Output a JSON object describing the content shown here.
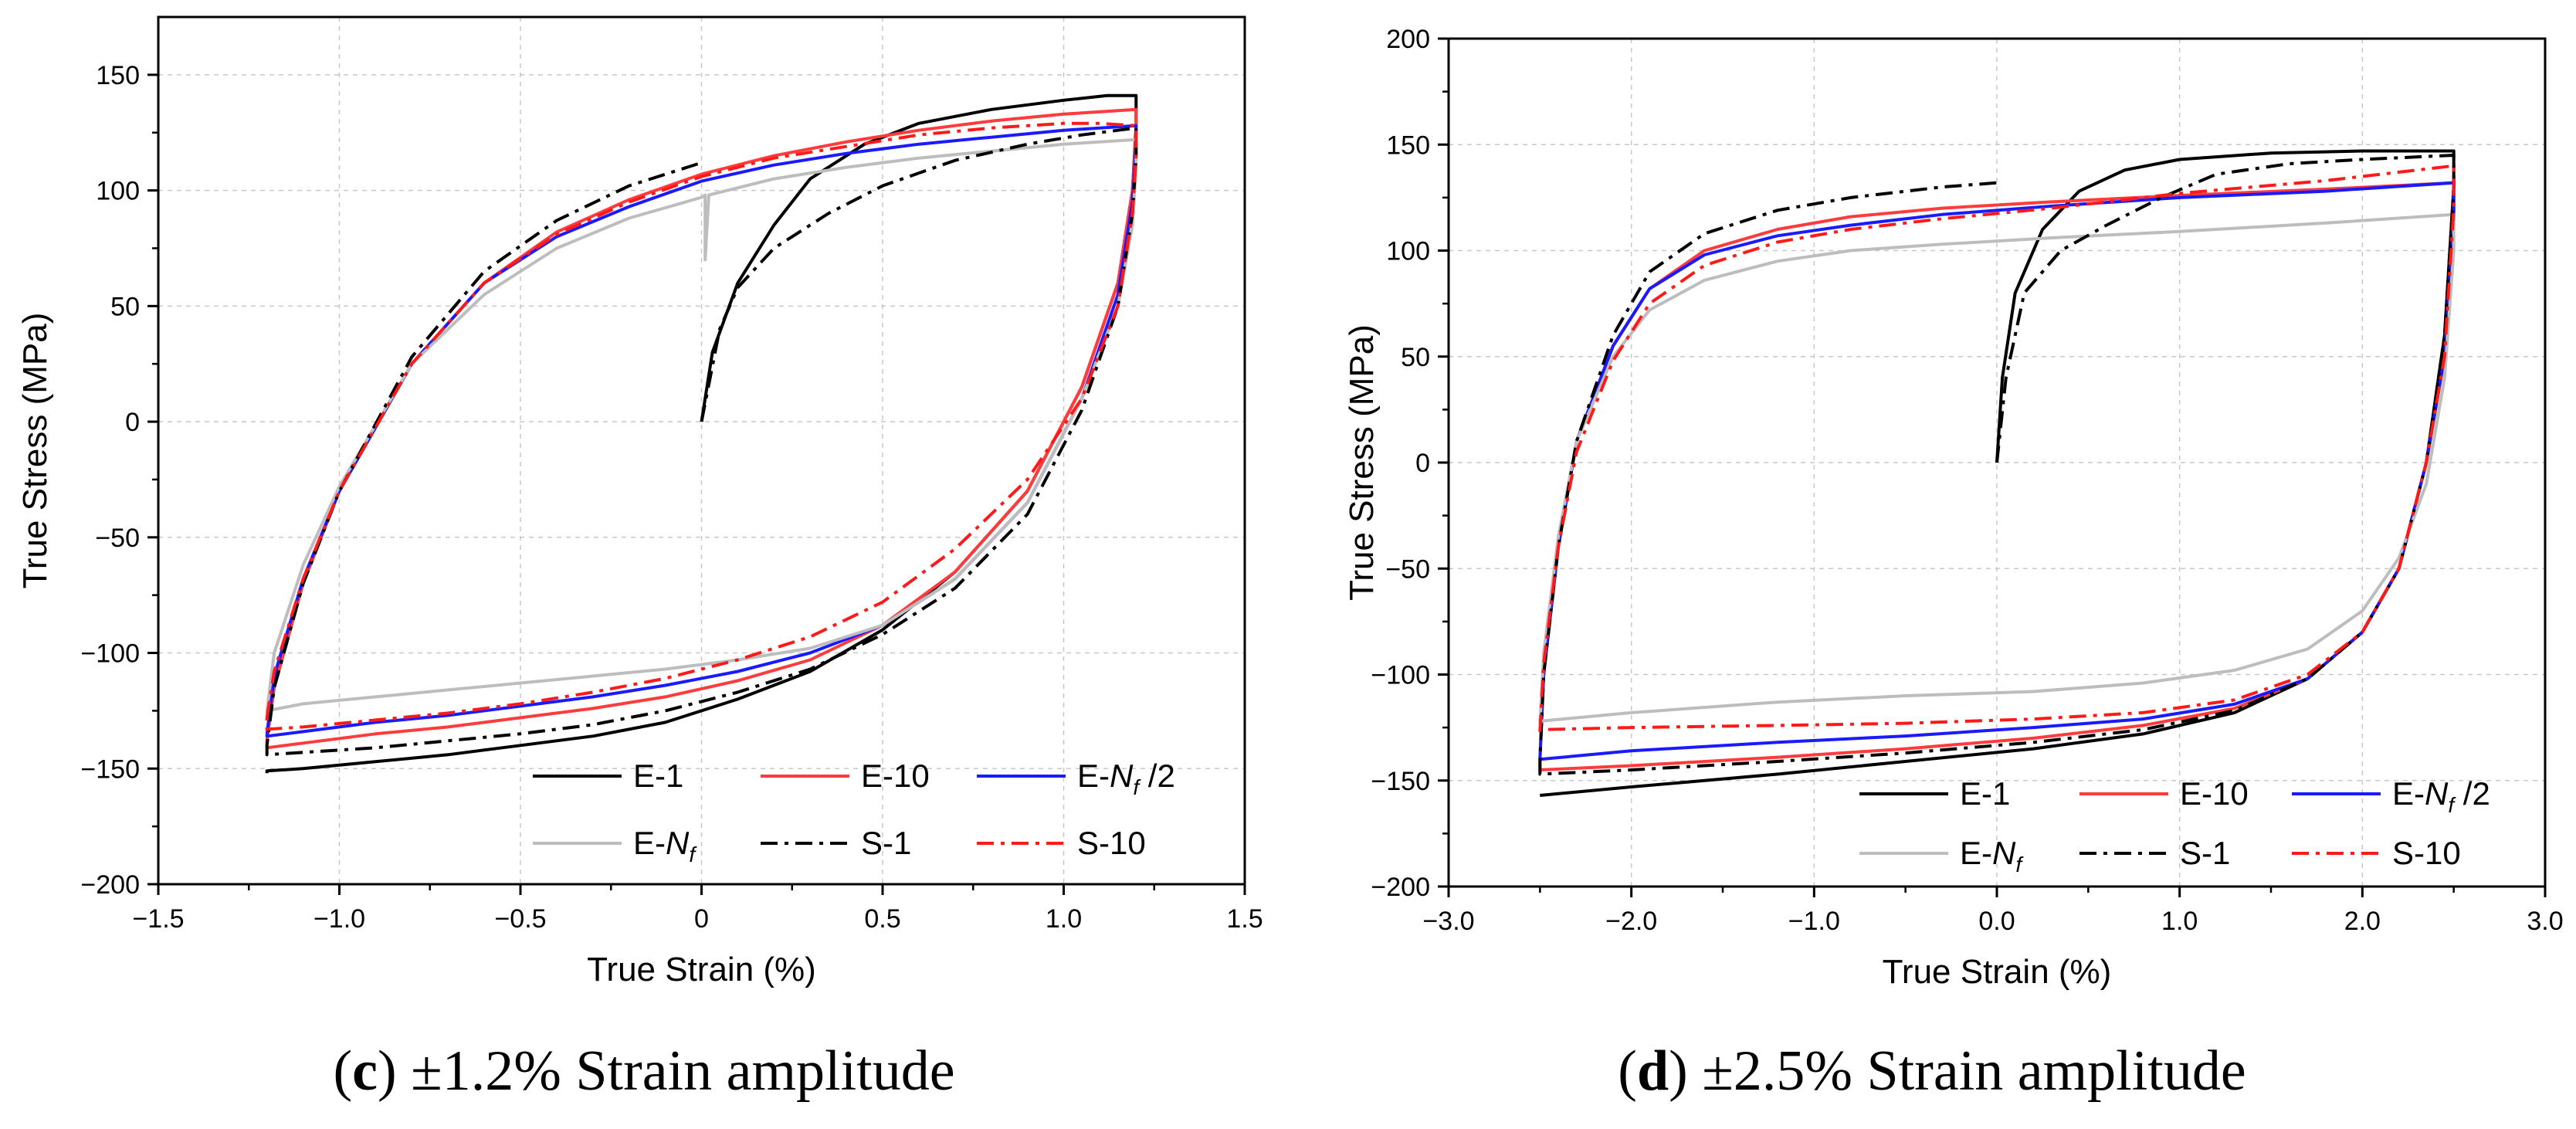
{
  "chart_data": [
    {
      "panel_id": "c",
      "type": "line",
      "xlabel": "True Strain (%)",
      "ylabel": "True Stress (MPa)",
      "xlim": [
        -1.5,
        1.5
      ],
      "ylim": [
        -200,
        175
      ],
      "xticks": [
        -1.5,
        -1.0,
        -0.5,
        0,
        0.5,
        1.0,
        1.5
      ],
      "xtick_labels": [
        "−1.5",
        "−1.0",
        "−0.5",
        "0",
        "0.5",
        "1.0",
        "1.5"
      ],
      "yticks": [
        -200,
        -150,
        -100,
        -50,
        0,
        50,
        100,
        150
      ],
      "ytick_labels": [
        "−200",
        "−150",
        "−100",
        "−50",
        "0",
        "50",
        "100",
        "150"
      ],
      "grid": true,
      "legend_position": "bottom-right",
      "caption": {
        "letter": "c",
        "paren_open": "(",
        "paren_close": ")",
        "text": " ±1.2% Strain amplitude"
      },
      "series": [
        {
          "name": "E-1",
          "label_main": "E-1",
          "label_sub": "",
          "label_suffix": "",
          "color": "#000000",
          "dash": "solid",
          "x": [
            0,
            0.03,
            0.1,
            0.2,
            0.3,
            0.45,
            0.6,
            0.8,
            1.0,
            1.12,
            1.2,
            1.2,
            1.19,
            1.15,
            1.05,
            0.9,
            0.7,
            0.5,
            0.3,
            0.1,
            -0.1,
            -0.3,
            -0.5,
            -0.7,
            -0.9,
            -1.1,
            -1.2,
            -1.2
          ],
          "y": [
            0,
            30,
            60,
            85,
            105,
            120,
            129,
            135,
            139,
            141,
            141,
            128,
            100,
            60,
            15,
            -30,
            -65,
            -90,
            -108,
            -120,
            -130,
            -136,
            -140,
            -144,
            -147,
            -150,
            -151,
            -152
          ]
        },
        {
          "name": "E-10",
          "label_main": "E-10",
          "label_sub": "",
          "label_suffix": "",
          "color": "#ff3b3b",
          "dash": "solid",
          "x": [
            -1.2,
            -1.18,
            -1.1,
            -1.0,
            -0.8,
            -0.6,
            -0.4,
            -0.2,
            0,
            0.2,
            0.4,
            0.6,
            0.8,
            1.0,
            1.1,
            1.2,
            1.2,
            1.19,
            1.15,
            1.05,
            0.9,
            0.7,
            0.5,
            0.3,
            0.1,
            -0.1,
            -0.3,
            -0.5,
            -0.7,
            -0.9,
            -1.1,
            -1.2,
            -1.2
          ],
          "y": [
            -138,
            -115,
            -70,
            -30,
            25,
            60,
            82,
            96,
            107,
            115,
            121,
            126,
            130,
            133,
            134,
            135,
            125,
            100,
            60,
            15,
            -30,
            -65,
            -88,
            -103,
            -112,
            -119,
            -124,
            -128,
            -132,
            -135,
            -139,
            -141,
            -138
          ]
        },
        {
          "name": "E-Nf/2",
          "label_main": "E-",
          "label_sub": "N",
          "label_subsub": "f",
          "label_suffix": " /2",
          "color": "#1a1aff",
          "dash": "solid",
          "x": [
            -1.2,
            -1.18,
            -1.1,
            -1.0,
            -0.8,
            -0.6,
            -0.4,
            -0.2,
            0,
            0.2,
            0.4,
            0.6,
            0.8,
            1.0,
            1.1,
            1.2,
            1.2,
            1.19,
            1.15,
            1.05,
            0.9,
            0.7,
            0.5,
            0.3,
            0.1,
            -0.1,
            -0.3,
            -0.5,
            -0.7,
            -0.9,
            -1.1,
            -1.2,
            -1.2
          ],
          "y": [
            -135,
            -110,
            -68,
            -30,
            25,
            60,
            80,
            93,
            104,
            111,
            116,
            120,
            123,
            126,
            127,
            128,
            120,
            95,
            55,
            10,
            -35,
            -68,
            -88,
            -100,
            -108,
            -114,
            -119,
            -123,
            -127,
            -130,
            -134,
            -136,
            -135
          ]
        },
        {
          "name": "E-Nf",
          "label_main": "E-",
          "label_sub": "N",
          "label_subsub": "f",
          "label_suffix": "",
          "color": "#bdbdbd",
          "dash": "solid",
          "x": [
            -1.2,
            -1.18,
            -1.1,
            -1.0,
            -0.8,
            -0.6,
            -0.4,
            -0.2,
            0,
            0.01,
            0.01,
            0.02,
            0.2,
            0.4,
            0.6,
            0.8,
            1.0,
            1.1,
            1.2,
            1.2,
            1.19,
            1.15,
            1.05,
            0.9,
            0.7,
            0.5,
            0.3,
            0.1,
            -0.1,
            -0.3,
            -0.5,
            -0.7,
            -0.9,
            -1.1,
            -1.2,
            -1.2
          ],
          "y": [
            -125,
            -100,
            -62,
            -28,
            25,
            55,
            75,
            88,
            97,
            98,
            70,
            98,
            105,
            110,
            114,
            117,
            120,
            121,
            122,
            110,
            85,
            50,
            10,
            -35,
            -68,
            -88,
            -98,
            -103,
            -107,
            -110,
            -113,
            -116,
            -119,
            -122,
            -125,
            -126
          ]
        },
        {
          "name": "S-1",
          "label_main": "S-1",
          "label_sub": "",
          "label_suffix": "",
          "color": "#000000",
          "dash": "dashdot",
          "x": [
            0,
            0.05,
            0.1,
            0.2,
            0.35,
            0.5,
            0.7,
            0.9,
            1.05,
            1.15,
            1.2,
            1.2,
            1.19,
            1.15,
            1.05,
            0.9,
            0.7,
            0.5,
            0.3,
            0.1,
            -0.1,
            -0.3,
            -0.5,
            -0.7,
            -0.9,
            -1.1,
            -1.2,
            -1.2,
            -1.18,
            -1.1,
            -1.0,
            -0.8,
            -0.6,
            -0.4,
            -0.2,
            0
          ],
          "y": [
            0,
            40,
            58,
            75,
            90,
            102,
            113,
            120,
            124,
            126,
            127,
            115,
            90,
            50,
            5,
            -40,
            -72,
            -92,
            -107,
            -117,
            -125,
            -131,
            -135,
            -138,
            -141,
            -143,
            -144,
            -140,
            -115,
            -70,
            -30,
            28,
            65,
            87,
            102,
            112
          ]
        },
        {
          "name": "S-10",
          "label_main": "S-10",
          "label_sub": "",
          "label_suffix": "",
          "color": "#ff1a1a",
          "dash": "dashdot",
          "x": [
            -1.2,
            -1.18,
            -1.1,
            -1.0,
            -0.8,
            -0.6,
            -0.4,
            -0.2,
            0,
            0.2,
            0.4,
            0.6,
            0.8,
            1.0,
            1.1,
            1.2,
            1.2,
            1.19,
            1.15,
            1.05,
            0.9,
            0.7,
            0.5,
            0.3,
            0.1,
            -0.1,
            -0.3,
            -0.5,
            -0.7,
            -0.9,
            -1.1,
            -1.2,
            -1.2
          ],
          "y": [
            -128,
            -108,
            -68,
            -30,
            25,
            60,
            81,
            95,
            106,
            114,
            119,
            124,
            127,
            129,
            129,
            128,
            115,
            90,
            50,
            10,
            -25,
            -55,
            -78,
            -93,
            -103,
            -111,
            -117,
            -122,
            -126,
            -129,
            -132,
            -133,
            -128
          ]
        }
      ]
    },
    {
      "panel_id": "d",
      "type": "line",
      "xlabel": "True Strain (%)",
      "ylabel": "True Stress (MPa)",
      "xlim": [
        -3.0,
        3.0
      ],
      "ylim": [
        -200,
        200
      ],
      "xticks": [
        -3.0,
        -2.0,
        -1.0,
        0,
        1.0,
        2.0,
        3.0
      ],
      "xtick_labels": [
        "−3.0",
        "−2.0",
        "−1.0",
        "0.0",
        "1.0",
        "2.0",
        "3.0"
      ],
      "yticks": [
        -200,
        -150,
        -100,
        -50,
        0,
        50,
        100,
        150,
        200
      ],
      "ytick_labels": [
        "−200",
        "−150",
        "−100",
        "−50",
        "0",
        "50",
        "100",
        "150",
        "200"
      ],
      "grid": true,
      "legend_position": "bottom-right",
      "caption": {
        "letter": "d",
        "paren_open": "(",
        "paren_close": ")",
        "text": " ±2.5% Strain amplitude"
      },
      "series": [
        {
          "name": "E-1",
          "label_main": "E-1",
          "label_sub": "",
          "label_suffix": "",
          "color": "#000000",
          "dash": "solid",
          "x": [
            0,
            0.03,
            0.1,
            0.25,
            0.45,
            0.7,
            1.0,
            1.5,
            2.0,
            2.5,
            2.5,
            2.45,
            2.35,
            2.2,
            2.0,
            1.7,
            1.3,
            0.8,
            0.2,
            -0.5,
            -1.2,
            -2.0,
            -2.5,
            -2.5
          ],
          "y": [
            0,
            40,
            80,
            110,
            128,
            138,
            143,
            146,
            147,
            147,
            130,
            60,
            0,
            -50,
            -80,
            -102,
            -118,
            -128,
            -135,
            -141,
            -147,
            -153,
            -157,
            -157
          ]
        },
        {
          "name": "E-10",
          "label_main": "E-10",
          "label_sub": "",
          "label_suffix": "",
          "color": "#ff3b3b",
          "dash": "solid",
          "x": [
            -2.5,
            -2.48,
            -2.4,
            -2.3,
            -2.1,
            -1.9,
            -1.6,
            -1.2,
            -0.8,
            -0.3,
            0.3,
            1.0,
            1.8,
            2.5,
            2.5,
            2.45,
            2.35,
            2.2,
            2.0,
            1.7,
            1.3,
            0.8,
            0.2,
            -0.5,
            -1.2,
            -2.0,
            -2.5,
            -2.5
          ],
          "y": [
            -140,
            -100,
            -40,
            10,
            55,
            82,
            100,
            110,
            116,
            120,
            123,
            126,
            129,
            132,
            115,
            50,
            0,
            -50,
            -80,
            -102,
            -116,
            -124,
            -130,
            -135,
            -139,
            -143,
            -145,
            -140
          ]
        },
        {
          "name": "E-Nf/2",
          "label_main": "E-",
          "label_sub": "N",
          "label_subsub": "f",
          "label_suffix": " /2",
          "color": "#1a1aff",
          "dash": "solid",
          "x": [
            -2.5,
            -2.48,
            -2.4,
            -2.3,
            -2.1,
            -1.9,
            -1.6,
            -1.2,
            -0.8,
            -0.3,
            0.3,
            1.0,
            1.8,
            2.5,
            2.5,
            2.45,
            2.35,
            2.2,
            2.0,
            1.7,
            1.3,
            0.8,
            0.2,
            -0.5,
            -1.2,
            -2.0,
            -2.5,
            -2.5
          ],
          "y": [
            -140,
            -100,
            -40,
            10,
            55,
            82,
            98,
            107,
            112,
            117,
            121,
            125,
            128,
            132,
            115,
            50,
            0,
            -50,
            -80,
            -102,
            -114,
            -121,
            -125,
            -129,
            -132,
            -136,
            -140,
            -140
          ]
        },
        {
          "name": "E-Nf",
          "label_main": "E-",
          "label_sub": "N",
          "label_subsub": "f",
          "label_suffix": "",
          "color": "#bdbdbd",
          "dash": "solid",
          "x": [
            -2.5,
            -2.48,
            -2.4,
            -2.3,
            -2.1,
            -1.9,
            -1.6,
            -1.2,
            -0.8,
            -0.3,
            0.3,
            1.0,
            1.8,
            2.5,
            2.5,
            2.45,
            2.35,
            2.2,
            2.0,
            1.7,
            1.3,
            0.8,
            0.2,
            -0.5,
            -1.2,
            -2.0,
            -2.5,
            -2.5
          ],
          "y": [
            -123,
            -90,
            -35,
            10,
            50,
            72,
            86,
            95,
            100,
            103,
            106,
            109,
            113,
            117,
            100,
            40,
            -10,
            -45,
            -70,
            -88,
            -98,
            -104,
            -108,
            -110,
            -113,
            -118,
            -122,
            -123
          ]
        },
        {
          "name": "S-1",
          "label_main": "S-1",
          "label_sub": "",
          "label_suffix": "",
          "color": "#000000",
          "dash": "dashdot",
          "x": [
            0,
            0.05,
            0.15,
            0.35,
            0.6,
            0.9,
            1.2,
            1.6,
            2.0,
            2.5,
            2.5,
            2.45,
            2.35,
            2.2,
            2.0,
            1.7,
            1.3,
            0.8,
            0.2,
            -0.5,
            -1.2,
            -2.0,
            -2.5,
            -2.5,
            -2.48,
            -2.4,
            -2.3,
            -2.1,
            -1.9,
            -1.6,
            -1.2,
            -0.8,
            -0.3,
            0
          ],
          "y": [
            0,
            40,
            80,
            100,
            112,
            125,
            136,
            141,
            143,
            145,
            130,
            60,
            0,
            -50,
            -80,
            -102,
            -117,
            -126,
            -132,
            -137,
            -141,
            -145,
            -147,
            -140,
            -100,
            -40,
            10,
            60,
            90,
            108,
            119,
            125,
            130,
            132
          ]
        },
        {
          "name": "S-10",
          "label_main": "S-10",
          "label_sub": "",
          "label_suffix": "",
          "color": "#ff1a1a",
          "dash": "dashdot",
          "x": [
            -2.5,
            -2.48,
            -2.4,
            -2.3,
            -2.1,
            -1.9,
            -1.6,
            -1.2,
            -0.8,
            -0.3,
            0.3,
            1.0,
            1.8,
            2.5,
            2.5,
            2.45,
            2.35,
            2.2,
            2.0,
            1.7,
            1.3,
            0.8,
            0.2,
            -0.5,
            -1.2,
            -2.0,
            -2.5,
            -2.5
          ],
          "y": [
            -127,
            -95,
            -40,
            5,
            48,
            75,
            93,
            104,
            110,
            115,
            120,
            127,
            133,
            140,
            120,
            50,
            0,
            -50,
            -80,
            -100,
            -112,
            -118,
            -121,
            -123,
            -124,
            -125,
            -126,
            -127
          ]
        }
      ]
    }
  ]
}
